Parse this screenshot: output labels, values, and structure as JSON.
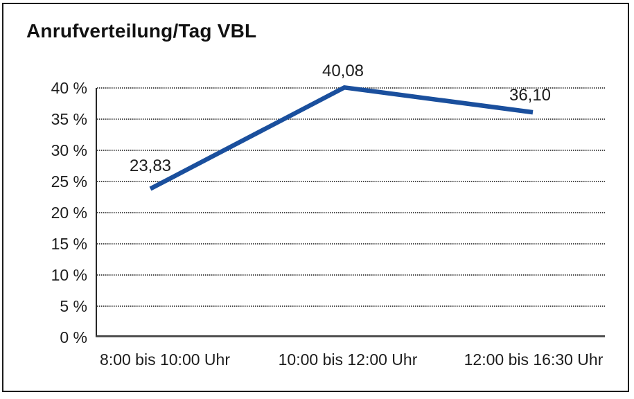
{
  "chart_data": {
    "type": "line",
    "title": "Anrufverteilung/Tag VBL",
    "categories": [
      "8:00 bis 10:00 Uhr",
      "10:00 bis 12:00 Uhr",
      "12:00 bis 16:30 Uhr"
    ],
    "values": [
      23.83,
      40.08,
      36.1
    ],
    "point_labels": [
      "23,83",
      "40,08",
      "36,10"
    ],
    "y_tick_labels": [
      "40 %",
      "35 %",
      "30 %",
      "25 %",
      "20 %",
      "15 %",
      "10 %",
      "5 %",
      "0 %"
    ],
    "y_tick_values": [
      40,
      35,
      30,
      25,
      20,
      15,
      10,
      5,
      0
    ],
    "ylim": [
      0,
      40
    ],
    "y_tick_step": 5,
    "xlabel": "",
    "ylabel": "",
    "grid": "horizontal-dotted",
    "legend": "none",
    "line_color": "#1a4f9d",
    "background_color": "#ffffff",
    "border_color": "#1a1a1a"
  }
}
